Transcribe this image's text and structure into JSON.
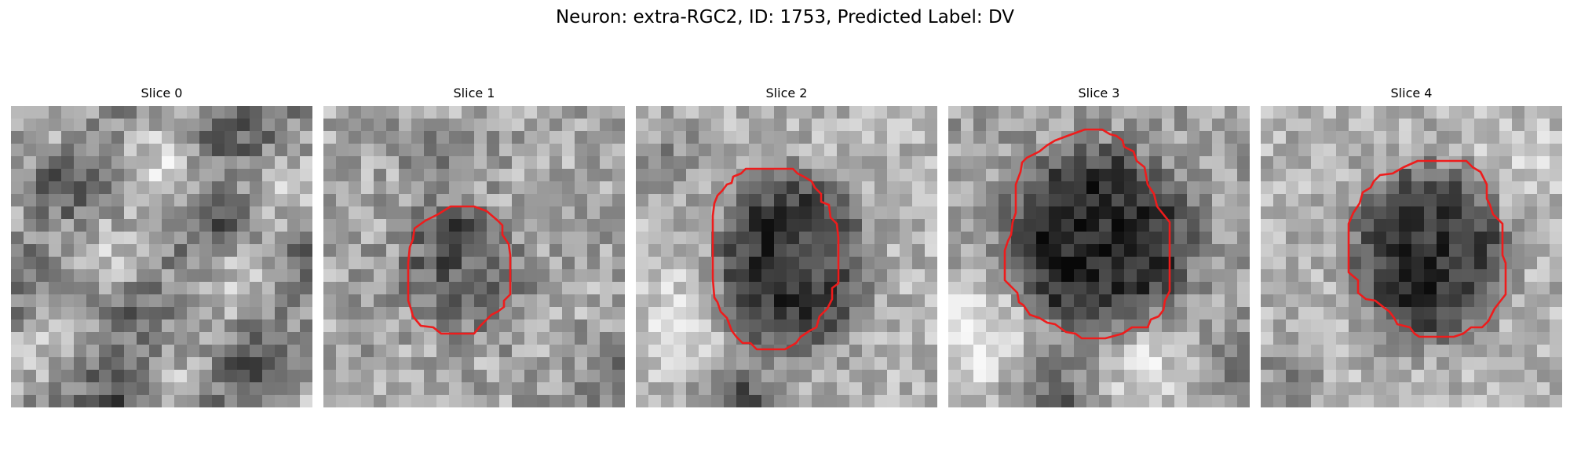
{
  "figure": {
    "title": "Neuron: extra-RGC2, ID: 1753, Predicted Label: DV",
    "outline_color": "#ee1c1c"
  },
  "panels": [
    {
      "title": "Slice 0"
    },
    {
      "title": "Slice 1"
    },
    {
      "title": "Slice 2"
    },
    {
      "title": "Slice 3"
    },
    {
      "title": "Slice 4"
    }
  ]
}
